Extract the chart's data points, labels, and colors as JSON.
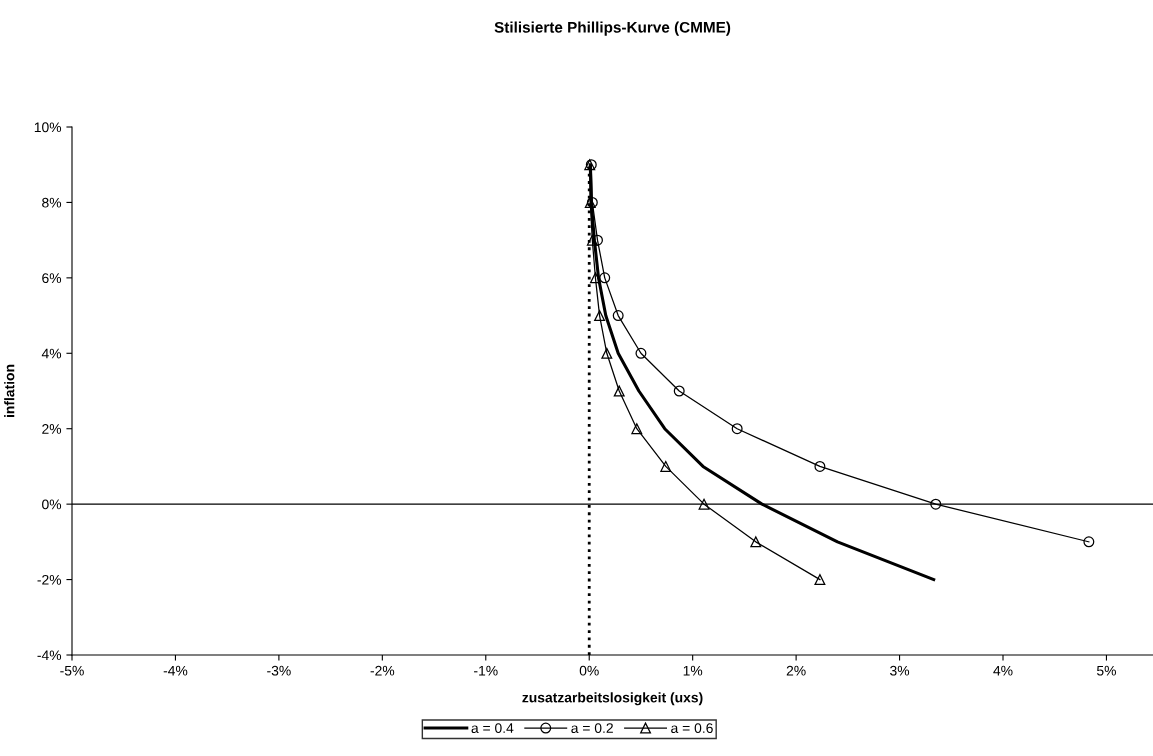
{
  "chart_data": {
    "type": "line",
    "title": "Stilisierte Phillips-Kurve (CMME)",
    "xlabel": "zusatzarbeitslosigkeit (uxs)",
    "ylabel": "inflation",
    "xlim": [
      -5,
      5.45
    ],
    "ylim": [
      -4,
      10
    ],
    "xticks": [
      {
        "value": -5,
        "label": "-5%"
      },
      {
        "value": -4,
        "label": "-4%"
      },
      {
        "value": -3,
        "label": "-3%"
      },
      {
        "value": -2,
        "label": "-2%"
      },
      {
        "value": -1,
        "label": "-1%"
      },
      {
        "value": 0,
        "label": "0%"
      },
      {
        "value": 1,
        "label": "1%"
      },
      {
        "value": 2,
        "label": "2%"
      },
      {
        "value": 3,
        "label": "3%"
      },
      {
        "value": 4,
        "label": "4%"
      },
      {
        "value": 5,
        "label": "5%"
      }
    ],
    "yticks": [
      {
        "value": -4,
        "label": "-4%"
      },
      {
        "value": -2,
        "label": "-2%"
      },
      {
        "value": 0,
        "label": "0%"
      },
      {
        "value": 2,
        "label": "2%"
      },
      {
        "value": 4,
        "label": "4%"
      },
      {
        "value": 6,
        "label": "6%"
      },
      {
        "value": 8,
        "label": "8%"
      },
      {
        "value": 10,
        "label": "10%"
      }
    ],
    "grid": false,
    "legend": "bottom",
    "ref_lines": [
      {
        "axis": "y",
        "value": 0,
        "color": "#000000",
        "line_style": "solid"
      }
    ],
    "series": [
      {
        "name": "a = 0.4",
        "color": "#000000",
        "marker": "none",
        "line_style": "solid",
        "x": [
          0.01,
          0.02,
          0.05,
          0.09,
          0.16,
          0.28,
          0.48,
          0.73,
          1.1,
          1.67,
          2.4,
          3.33
        ],
        "values": [
          9,
          8,
          7,
          6,
          5,
          4,
          3,
          2,
          1,
          0,
          -1,
          -2
        ]
      },
      {
        "name": "a = 0.2",
        "color": "#000000",
        "marker": "circle",
        "line_style": "solid",
        "x": [
          0.02,
          0.03,
          0.08,
          0.15,
          0.28,
          0.5,
          0.87,
          1.43,
          2.23,
          3.35,
          4.83
        ],
        "values": [
          9,
          8,
          7,
          6,
          5,
          4,
          3,
          2,
          1,
          0,
          -1
        ]
      },
      {
        "name": "a = 0.6",
        "color": "#000000",
        "marker": "triangle",
        "line_style": "solid",
        "x": [
          0.005,
          0.01,
          0.03,
          0.06,
          0.1,
          0.17,
          0.29,
          0.46,
          0.74,
          1.11,
          1.61,
          2.23
        ],
        "values": [
          9,
          8,
          7,
          6,
          5,
          4,
          3,
          2,
          1,
          0,
          -1,
          -2
        ]
      },
      {
        "color": "#000000",
        "marker": "none",
        "line_style": "dotted",
        "x": [
          0,
          0
        ],
        "values": [
          -4,
          9
        ]
      }
    ]
  }
}
